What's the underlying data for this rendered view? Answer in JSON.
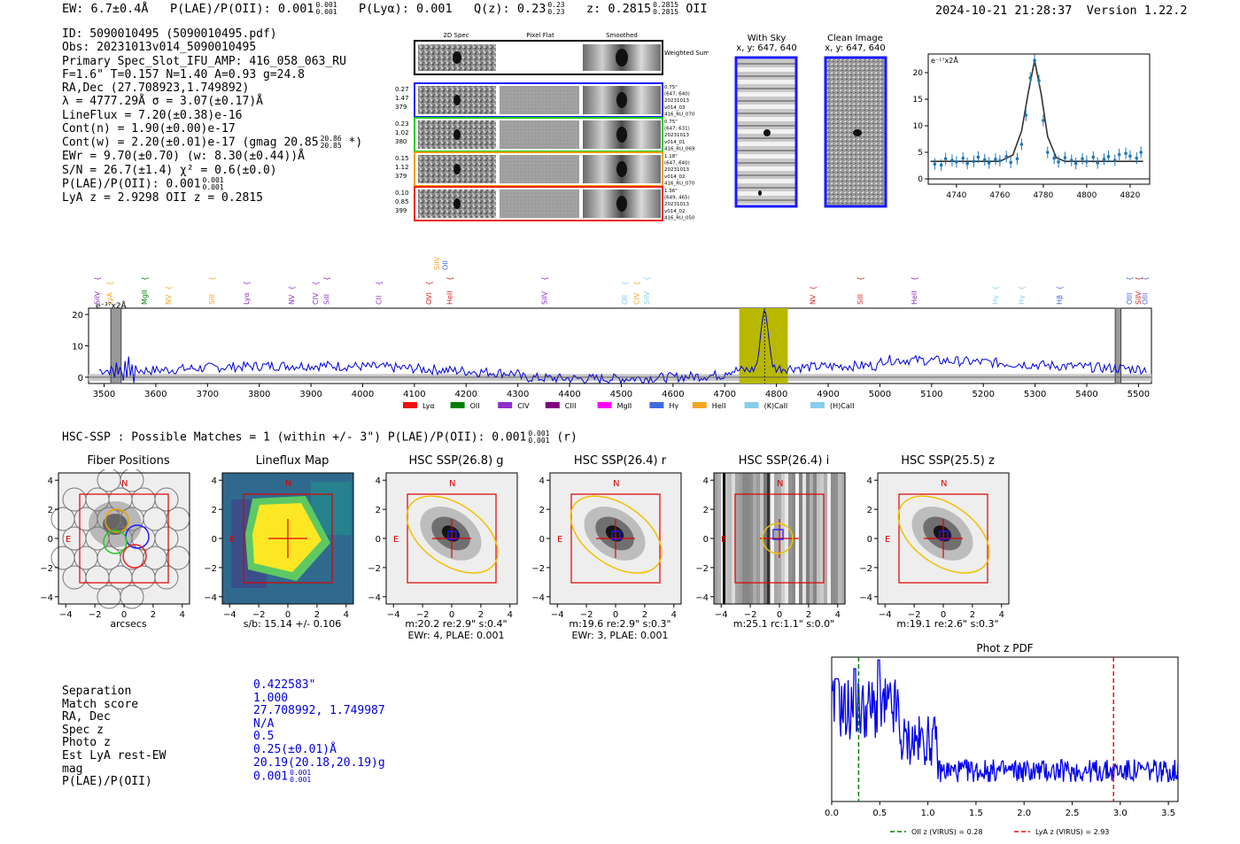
{
  "header": {
    "ew": "EW: 6.7±0.4Å",
    "plae_prefix": "P(LAE)/P(OII): 0.001",
    "plae_hi": "0.001",
    "plae_lo": "0.001",
    "plya": "P(Lyα): 0.001",
    "qz_prefix": "Q(z): 0.23",
    "qz_hi": "0.23",
    "qz_lo": "0.23",
    "z_prefix": "z: 0.2815",
    "z_hi": "0.2815",
    "z_lo": "0.2815",
    "z_line": "OII",
    "timestamp": "2024-10-21 21:28:37",
    "version": "Version 1.22.2"
  },
  "info": {
    "id": "ID: 5090010495 (5090010495.pdf)",
    "obs": "Obs: 20231013v014_5090010495",
    "primary": "Primary Spec_Slot_IFU_AMP: 416_058_063_RU",
    "params": "F=1.6\"  T=0.157  N=1.40  A=0.93  g=24.8",
    "radec": "RA,Dec (27.708923,1.749892)",
    "lambda": "λ = 4777.29Å  σ = 3.07(±0.17)Å",
    "lineflux": "LineFlux = 7.20(±0.38)e-16",
    "contn": "Cont(n) = 1.90(±0.00)e-17",
    "contw_prefix": "Cont(w) = 2.20(±0.01)e-17 (gmag 20.85",
    "contw_hi": "20.86",
    "contw_lo": "20.85",
    "contw_suffix": "*)",
    "ewr": "EWr = 9.70(±0.70)  (w: 8.30(±0.44))Å",
    "sn": "S/N = 26.7(±1.4)  χ² = 0.6(±0.0)",
    "plae_prefix": "P(LAE)/P(OII): 0.001",
    "plae_hi": "0.001",
    "plae_lo": "0.001",
    "lyaz": "LyA z = 2.9298   OII z = 0.2815"
  },
  "spec2d": {
    "col_titles": [
      "2D Spec",
      "Pixel Flat",
      "Smoothed"
    ],
    "weighted_sum": "Weighted Sum",
    "rows": [
      {
        "left": [
          "0.27",
          "1.47",
          "379"
        ],
        "right": [
          "0.75\"",
          "(647, 640)",
          "20231013",
          "v014_03",
          "416_RU_070"
        ],
        "color": "#1a1aff"
      },
      {
        "left": [
          "0.23",
          "1.02",
          "380"
        ],
        "right": [
          "0.75\"",
          "(647, 631)",
          "20231013",
          "v014_01",
          "416_RU_069"
        ],
        "color": "#22cc22"
      },
      {
        "left": [
          "0.15",
          "1.12",
          "379"
        ],
        "right": [
          "1.18\"",
          "(647, 640)",
          "20231013",
          "v014_02",
          "416_RU_070"
        ],
        "color": "#f0a000"
      },
      {
        "left": [
          "0.10",
          "0.85",
          "399"
        ],
        "right": [
          "1.36\"",
          "(649, 465)",
          "20231013",
          "v014_02",
          "416_RU_050"
        ],
        "color": "#ee2222"
      }
    ]
  },
  "sky": {
    "with_sky_title": "With Sky",
    "with_sky_coords": "x, y: 647, 640",
    "clean_title": "Clean Image",
    "clean_coords": "x, y: 647, 640"
  },
  "chart_data": [
    {
      "type": "line",
      "name": "line-fit",
      "ylabel": "e⁻¹⁷x2Å",
      "xlim": [
        4727,
        4829
      ],
      "ylim": [
        -1,
        23.5
      ],
      "xticks": [
        4740,
        4760,
        4780,
        4800,
        4820
      ],
      "yticks": [
        0,
        5,
        10,
        15,
        20
      ],
      "data_x": [
        4730,
        4733,
        4735,
        4738,
        4740,
        4743,
        4745,
        4748,
        4750,
        4753,
        4755,
        4758,
        4760,
        4763,
        4765,
        4768,
        4770,
        4772,
        4774,
        4776,
        4778,
        4780,
        4782,
        4785,
        4787,
        4790,
        4793,
        4795,
        4798,
        4800,
        4803,
        4805,
        4808,
        4810,
        4813,
        4815,
        4818,
        4820,
        4823,
        4825
      ],
      "data_y": [
        2.8,
        2.6,
        3.8,
        3.5,
        3.2,
        3.9,
        2.9,
        3.3,
        4.1,
        3.6,
        3.0,
        3.7,
        3.4,
        4.2,
        3.1,
        3.8,
        6.5,
        12.0,
        19.0,
        22.3,
        18.5,
        11.0,
        5.0,
        3.9,
        3.2,
        4.0,
        3.5,
        2.9,
        3.8,
        3.3,
        4.1,
        3.0,
        3.7,
        4.2,
        3.5,
        4.6,
        4.8,
        4.3,
        3.9,
        5.0
      ],
      "fit_x": [
        4728,
        4740,
        4760,
        4766,
        4770,
        4773,
        4776,
        4779,
        4782,
        4786,
        4790,
        4800,
        4826
      ],
      "fit_y": [
        3.3,
        3.3,
        3.3,
        4.5,
        9.0,
        16.0,
        22.3,
        16.0,
        8.0,
        4.0,
        3.3,
        3.3,
        3.3
      ]
    },
    {
      "type": "line",
      "name": "full-spectrum",
      "ylabel": "e⁻¹⁷x2Å",
      "xlim": [
        3470,
        5525
      ],
      "ylim": [
        -2,
        22
      ],
      "xticks": [
        3500,
        3600,
        3700,
        3800,
        3900,
        4000,
        4100,
        4200,
        4300,
        4400,
        4500,
        4600,
        4700,
        4800,
        4900,
        5000,
        5100,
        5200,
        5300,
        5400,
        5500
      ],
      "yticks": [
        0,
        10,
        20
      ],
      "highlight": [
        4728,
        4822
      ],
      "emission_peak": 4777,
      "peak_value": 21.5,
      "line_markers": [
        {
          "label": "SiIV",
          "x": 3486,
          "color": "#8b2fc9"
        },
        {
          "label": "LyA",
          "x": 3510,
          "color": "#f5a623"
        },
        {
          "label": "MgII",
          "x": 3578,
          "color": "#008000"
        },
        {
          "label": "NV",
          "x": 3624,
          "color": "#f5a623"
        },
        {
          "label": "SiII",
          "x": 3708,
          "color": "#f5a623"
        },
        {
          "label": "Lyα",
          "x": 3775,
          "color": "#8b2fc9"
        },
        {
          "label": "NV",
          "x": 3862,
          "color": "#8b2fc9"
        },
        {
          "label": "CIV",
          "x": 3908,
          "color": "#8b2fc9"
        },
        {
          "label": "SiII",
          "x": 3930,
          "color": "#8b2fc9"
        },
        {
          "label": "CII",
          "x": 4031,
          "color": "#8b2fc9"
        },
        {
          "label": "OVI",
          "x": 4128,
          "color": "#dd2222"
        },
        {
          "label": "HeII",
          "x": 4168,
          "color": "#dd2222"
        },
        {
          "label": "SiIV",
          "x": 4351,
          "color": "#8b2fc9"
        },
        {
          "label": "OII",
          "x": 4506,
          "color": "#87ceeb"
        },
        {
          "label": "CIV",
          "x": 4529,
          "color": "#f5a623"
        },
        {
          "label": "SiIV",
          "x": 4549,
          "color": "#87ceeb"
        },
        {
          "label": "NV",
          "x": 4870,
          "color": "#dd2222"
        },
        {
          "label": "SiII",
          "x": 4962,
          "color": "#dd2222"
        },
        {
          "label": "HeII",
          "x": 5066,
          "color": "#8b2fc9"
        },
        {
          "label": "Hγ",
          "x": 5223,
          "color": "#87ceeb"
        },
        {
          "label": "Hγ",
          "x": 5273,
          "color": "#87ceeb"
        },
        {
          "label": "Hβ",
          "x": 5347,
          "color": "#4169e1"
        },
        {
          "label": "OIII",
          "x": 5482,
          "color": "#4169e1"
        },
        {
          "label": "SiIV",
          "x": 5499,
          "color": "#dd2222"
        },
        {
          "label": "OIII",
          "x": 5512,
          "color": "#4169e1"
        }
      ],
      "top_markers": [
        {
          "label": "SiIV",
          "x": 4143,
          "color": "#f5a623"
        },
        {
          "label": "OII",
          "x": 4159,
          "color": "#4169e1"
        }
      ],
      "legend": [
        {
          "label": "Lyα",
          "color": "#ee1111"
        },
        {
          "label": "OII",
          "color": "#008000"
        },
        {
          "label": "CIV",
          "color": "#8b2fc9"
        },
        {
          "label": "CIII",
          "color": "#800080"
        },
        {
          "label": "MgII",
          "color": "#ff00ff"
        },
        {
          "label": "Hγ",
          "color": "#4169e1"
        },
        {
          "label": "HeII",
          "color": "#f5a623"
        },
        {
          "label": "(K)CaII",
          "color": "#87ceeb"
        },
        {
          "label": "(H)CaII",
          "color": "#87ceeb"
        }
      ]
    },
    {
      "type": "line",
      "name": "photz-pdf",
      "title": "Phot z PDF",
      "xlim": [
        0,
        3.6
      ],
      "xticks": [
        0.0,
        0.5,
        1.0,
        1.5,
        2.0,
        2.5,
        3.0,
        3.5
      ],
      "oii_z": 0.28,
      "lya_z": 2.93,
      "legend": [
        {
          "label": "OII z (VIRUS) = 0.28",
          "color": "#008000"
        },
        {
          "label": "LyA z (VIRUS) = 2.93",
          "color": "#ee1111"
        }
      ]
    }
  ],
  "hsc": {
    "summary_prefix": "HSC-SSP : Possible Matches = 1 (within +/- 3\")  P(LAE)/P(OII): 0.001",
    "summary_hi": "0.001",
    "summary_lo": "0.001",
    "summary_suffix": "(r)",
    "cutouts": [
      {
        "title": "Fiber Positions",
        "caption": "arcsecs",
        "caption2": "",
        "kind": "fiber"
      },
      {
        "title": "Lineflux Map",
        "caption": "s/b: 15.14 +/- 0.106",
        "caption2": "",
        "kind": "lineflux"
      },
      {
        "title": "HSC SSP(26.8) g",
        "caption": "m:20.2  re:2.9\"  s:0.4\"",
        "caption2": "EWr: 4, PLAE: 0.001",
        "kind": "galaxy"
      },
      {
        "title": "HSC SSP(26.4) r",
        "caption": "m:19.6  re:2.9\"  s:0.3\"",
        "caption2": "EWr: 3, PLAE: 0.001",
        "kind": "galaxy"
      },
      {
        "title": "HSC SSP(26.4) i",
        "caption": "m:25.1  rc:1.1\"  s:0.0\"",
        "caption2": "",
        "kind": "stripes"
      },
      {
        "title": "HSC SSP(25.5) z",
        "caption": "m:19.1  re:2.6\"  s:0.3\"",
        "caption2": "",
        "kind": "galaxy"
      }
    ],
    "axis_ticks": [
      "−4",
      "−2",
      "0",
      "2",
      "4"
    ],
    "n_label": "N",
    "e_label": "E"
  },
  "match": {
    "labels": [
      "Separation",
      "Match score",
      "RA, Dec",
      "Spec z",
      "Photo z",
      "Est LyA rest-EW",
      "mag",
      "P(LAE)/P(OII)"
    ],
    "values": [
      "0.422583\"",
      "1.000",
      "27.708992, 1.749987",
      "N/A",
      "0.5",
      "0.25(±0.01)Å",
      "20.19(20.18,20.19)g",
      "0.001"
    ],
    "plae_hi": "0.001",
    "plae_lo": "0.001"
  }
}
